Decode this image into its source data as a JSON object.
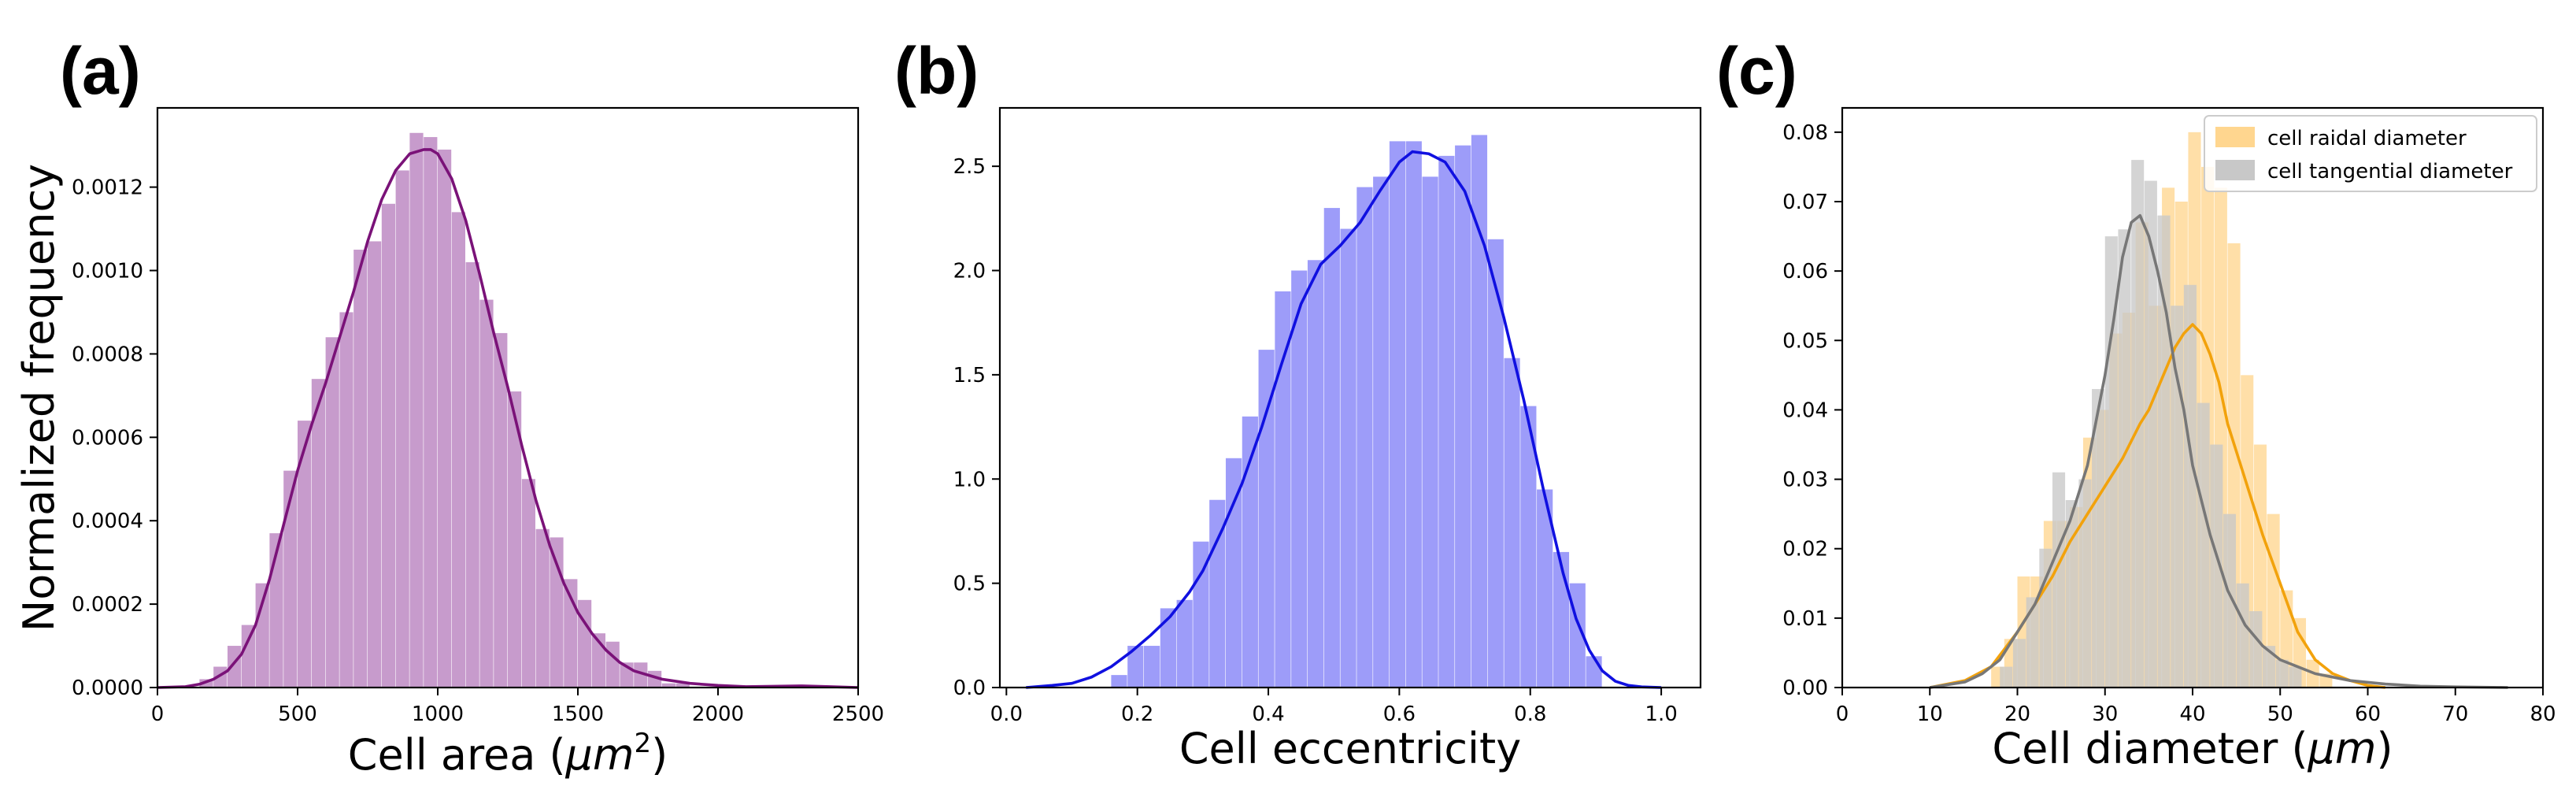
{
  "chart_data": [
    {
      "panel_label": "(a)",
      "type": "bar",
      "xlabel": "Cell area (μm²)",
      "xlabel_parts": [
        "Cell area (",
        "μm",
        "2",
        ")"
      ],
      "ylabel": "Normalized frequency",
      "xlim": [
        0,
        2500
      ],
      "ylim": [
        0,
        0.00139
      ],
      "xticks": [
        "0",
        "500",
        "1000",
        "1500",
        "2000",
        "2500"
      ],
      "xtick_values": [
        0,
        500,
        1000,
        1500,
        2000,
        2500
      ],
      "yticks": [
        "0.0000",
        "0.0002",
        "0.0004",
        "0.0006",
        "0.0008",
        "0.0010",
        "0.0012"
      ],
      "ytick_values": [
        0,
        0.0002,
        0.0004,
        0.0006,
        0.0008,
        0.001,
        0.0012
      ],
      "series": [
        {
          "kind": "histogram",
          "color": "#c79bcc",
          "bin_edges": [
            150,
            200,
            250,
            300,
            350,
            400,
            450,
            500,
            550,
            600,
            650,
            700,
            750,
            800,
            850,
            900,
            950,
            1000,
            1050,
            1100,
            1150,
            1200,
            1250,
            1300,
            1350,
            1400,
            1450,
            1500,
            1550,
            1600,
            1650,
            1700,
            1750,
            1800,
            1850,
            1900
          ],
          "values": [
            2e-05,
            5e-05,
            0.0001,
            0.00015,
            0.00025,
            0.00037,
            0.00052,
            0.00064,
            0.00074,
            0.00084,
            0.0009,
            0.00105,
            0.00107,
            0.00116,
            0.00124,
            0.00133,
            0.00132,
            0.00129,
            0.00114,
            0.00102,
            0.00093,
            0.00085,
            0.00071,
            0.0005,
            0.00038,
            0.00036,
            0.00026,
            0.00021,
            0.00013,
            0.00011,
            6e-05,
            6e-05,
            4e-05,
            1e-05,
            1e-05
          ]
        },
        {
          "kind": "kde",
          "color": "#7a1278",
          "x": [
            0,
            100,
            150,
            200,
            250,
            300,
            350,
            400,
            450,
            500,
            550,
            600,
            650,
            700,
            750,
            800,
            850,
            900,
            950,
            975,
            1000,
            1050,
            1100,
            1150,
            1200,
            1250,
            1300,
            1350,
            1400,
            1450,
            1500,
            1550,
            1600,
            1650,
            1700,
            1750,
            1800,
            1900,
            2000,
            2100,
            2200,
            2300,
            2400,
            2500
          ],
          "y": [
            0,
            2e-06,
            8e-06,
            2e-05,
            4e-05,
            8e-05,
            0.00015,
            0.00026,
            0.00039,
            0.00052,
            0.00063,
            0.00073,
            0.00084,
            0.00095,
            0.00107,
            0.00117,
            0.00124,
            0.00128,
            0.00129,
            0.00129,
            0.00128,
            0.00122,
            0.00112,
            0.00099,
            0.00085,
            0.00072,
            0.00058,
            0.00045,
            0.00034,
            0.00025,
            0.00018,
            0.00013,
            9e-05,
            6e-05,
            4e-05,
            3e-05,
            2e-05,
            1e-05,
            5e-06,
            2e-06,
            3e-06,
            4e-06,
            2e-06,
            0
          ]
        }
      ]
    },
    {
      "panel_label": "(b)",
      "type": "bar",
      "xlabel": "Cell eccentricity",
      "ylabel": "",
      "xlim": [
        -0.01,
        1.06
      ],
      "ylim": [
        0,
        2.78
      ],
      "xticks": [
        "0.0",
        "0.2",
        "0.4",
        "0.6",
        "0.8",
        "1.0"
      ],
      "xtick_values": [
        0,
        0.2,
        0.4,
        0.6,
        0.8,
        1.0
      ],
      "yticks": [
        "0.0",
        "0.5",
        "1.0",
        "1.5",
        "2.0",
        "2.5"
      ],
      "ytick_values": [
        0,
        0.5,
        1.0,
        1.5,
        2.0,
        2.5
      ],
      "series": [
        {
          "kind": "histogram",
          "color": "#9d9cf9",
          "bin_edges": [
            0.16,
            0.185,
            0.21,
            0.235,
            0.26,
            0.285,
            0.31,
            0.335,
            0.36,
            0.385,
            0.41,
            0.435,
            0.46,
            0.485,
            0.51,
            0.535,
            0.56,
            0.585,
            0.61,
            0.635,
            0.66,
            0.685,
            0.71,
            0.735,
            0.76,
            0.785,
            0.81,
            0.835,
            0.86,
            0.885,
            0.91
          ],
          "values": [
            0.06,
            0.2,
            0.2,
            0.38,
            0.42,
            0.7,
            0.9,
            1.1,
            1.3,
            1.62,
            1.9,
            2.0,
            2.05,
            2.3,
            2.2,
            2.4,
            2.45,
            2.62,
            2.62,
            2.45,
            2.55,
            2.6,
            2.65,
            2.15,
            1.58,
            1.35,
            0.95,
            0.65,
            0.5,
            0.15
          ]
        },
        {
          "kind": "kde",
          "color": "#1010e0",
          "x": [
            0.03,
            0.07,
            0.1,
            0.13,
            0.16,
            0.19,
            0.22,
            0.25,
            0.28,
            0.3,
            0.33,
            0.36,
            0.39,
            0.42,
            0.45,
            0.48,
            0.51,
            0.54,
            0.57,
            0.6,
            0.62,
            0.645,
            0.67,
            0.7,
            0.73,
            0.76,
            0.79,
            0.82,
            0.85,
            0.87,
            0.89,
            0.91,
            0.93,
            0.95,
            0.97,
            1.0
          ],
          "y": [
            0,
            0.01,
            0.02,
            0.05,
            0.1,
            0.17,
            0.25,
            0.34,
            0.46,
            0.56,
            0.76,
            0.98,
            1.25,
            1.55,
            1.84,
            2.03,
            2.12,
            2.23,
            2.38,
            2.52,
            2.57,
            2.56,
            2.52,
            2.38,
            2.12,
            1.77,
            1.38,
            0.95,
            0.55,
            0.33,
            0.18,
            0.08,
            0.03,
            0.01,
            0.003,
            0
          ]
        }
      ]
    },
    {
      "panel_label": "(c)",
      "type": "bar",
      "xlabel": "Cell diameter (μm)",
      "xlabel_parts": [
        "Cell diameter (",
        "μm",
        ")"
      ],
      "ylabel": "",
      "xlim": [
        0,
        80
      ],
      "ylim": [
        0,
        0.0835
      ],
      "xticks": [
        "0",
        "10",
        "20",
        "30",
        "40",
        "50",
        "60",
        "70",
        "80"
      ],
      "xtick_values": [
        0,
        10,
        20,
        30,
        40,
        50,
        60,
        70,
        80
      ],
      "yticks": [
        "0.00",
        "0.01",
        "0.02",
        "0.03",
        "0.04",
        "0.05",
        "0.06",
        "0.07",
        "0.08"
      ],
      "ytick_values": [
        0,
        0.01,
        0.02,
        0.03,
        0.04,
        0.05,
        0.06,
        0.07,
        0.08
      ],
      "legend_position": "upper right",
      "series": [
        {
          "name": "cell raidal diameter",
          "kind": "histogram",
          "color": "#ffd68f",
          "bin_edges": [
            17,
            18.5,
            20,
            21.5,
            23,
            24.5,
            26,
            27.5,
            29,
            30.5,
            32,
            33.5,
            35,
            36.5,
            38,
            39.5,
            41,
            42.5,
            44,
            45.5,
            47,
            48.5,
            50,
            51.5,
            53,
            54.5,
            56
          ],
          "values": [
            0.003,
            0.007,
            0.016,
            0.016,
            0.024,
            0.024,
            0.026,
            0.036,
            0.04,
            0.051,
            0.054,
            0.067,
            0.055,
            0.072,
            0.07,
            0.08,
            0.075,
            0.072,
            0.064,
            0.045,
            0.035,
            0.025,
            0.014,
            0.01,
            0.004,
            0.002
          ]
        },
        {
          "name": "cell tangential diameter",
          "kind": "histogram",
          "color": "#c8c8c8",
          "bin_edges": [
            18,
            19.5,
            21,
            22.5,
            24,
            25.5,
            27,
            28.5,
            30,
            31.5,
            33,
            34.5,
            36,
            37.5,
            39,
            40.5,
            42,
            43.5,
            45,
            46.5,
            48,
            49.5,
            51,
            52.5
          ],
          "values": [
            0.003,
            0.007,
            0.013,
            0.02,
            0.031,
            0.027,
            0.03,
            0.043,
            0.065,
            0.066,
            0.076,
            0.073,
            0.068,
            0.055,
            0.058,
            0.041,
            0.035,
            0.025,
            0.015,
            0.011,
            0.006,
            0.004,
            0.003
          ]
        },
        {
          "name": "cell raidal diameter kde",
          "kind": "kde",
          "color": "#f2a20c",
          "x": [
            10,
            14,
            17,
            20,
            22,
            24,
            26,
            28,
            30,
            32,
            34,
            35,
            36,
            38,
            39,
            40,
            41,
            42,
            43,
            44,
            46,
            48,
            50,
            52,
            54,
            56,
            58,
            60,
            62
          ],
          "y": [
            0,
            0.001,
            0.003,
            0.008,
            0.012,
            0.016,
            0.021,
            0.025,
            0.029,
            0.033,
            0.038,
            0.04,
            0.043,
            0.049,
            0.051,
            0.0523,
            0.051,
            0.048,
            0.044,
            0.038,
            0.03,
            0.022,
            0.015,
            0.008,
            0.004,
            0.002,
            0.001,
            0.0003,
            0
          ]
        },
        {
          "name": "cell tangential diameter kde",
          "kind": "kde",
          "color": "#777777",
          "x": [
            10,
            14,
            16,
            18,
            20,
            22,
            24,
            26,
            28,
            30,
            31,
            32,
            33,
            34,
            35,
            36,
            37,
            38,
            39,
            40,
            42,
            44,
            46,
            48,
            50,
            52,
            54,
            58,
            62,
            66,
            70,
            76
          ],
          "y": [
            0,
            0.0008,
            0.002,
            0.004,
            0.008,
            0.012,
            0.018,
            0.024,
            0.032,
            0.045,
            0.053,
            0.062,
            0.067,
            0.068,
            0.065,
            0.06,
            0.054,
            0.046,
            0.04,
            0.032,
            0.022,
            0.014,
            0.009,
            0.006,
            0.004,
            0.003,
            0.002,
            0.001,
            0.0005,
            0.0002,
            0.0001,
            0
          ]
        }
      ]
    }
  ]
}
